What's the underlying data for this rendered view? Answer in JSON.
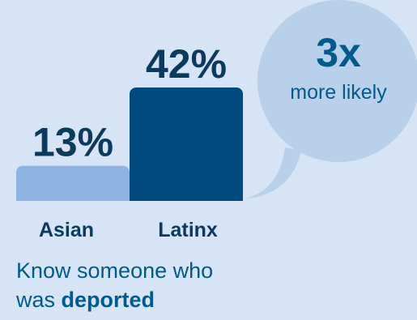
{
  "chart_data": {
    "type": "bar",
    "categories": [
      "Asian",
      "Latinx"
    ],
    "values": [
      13,
      42
    ],
    "value_labels": [
      "13%",
      "42%"
    ],
    "colors": [
      "#8db4e2",
      "#004a80"
    ],
    "ylim": [
      0,
      42
    ],
    "grid": false,
    "legend": "none"
  },
  "callout": {
    "big": "3x",
    "small": "more likely"
  },
  "caption": {
    "line1": "Know someone who",
    "line2_prefix": "was ",
    "line2_bold": "deported"
  },
  "colors": {
    "background": "#d6e4f6",
    "bubble": "#b8d0ea",
    "text_dark": "#0b3a5c",
    "text_accent": "#005a8c"
  }
}
